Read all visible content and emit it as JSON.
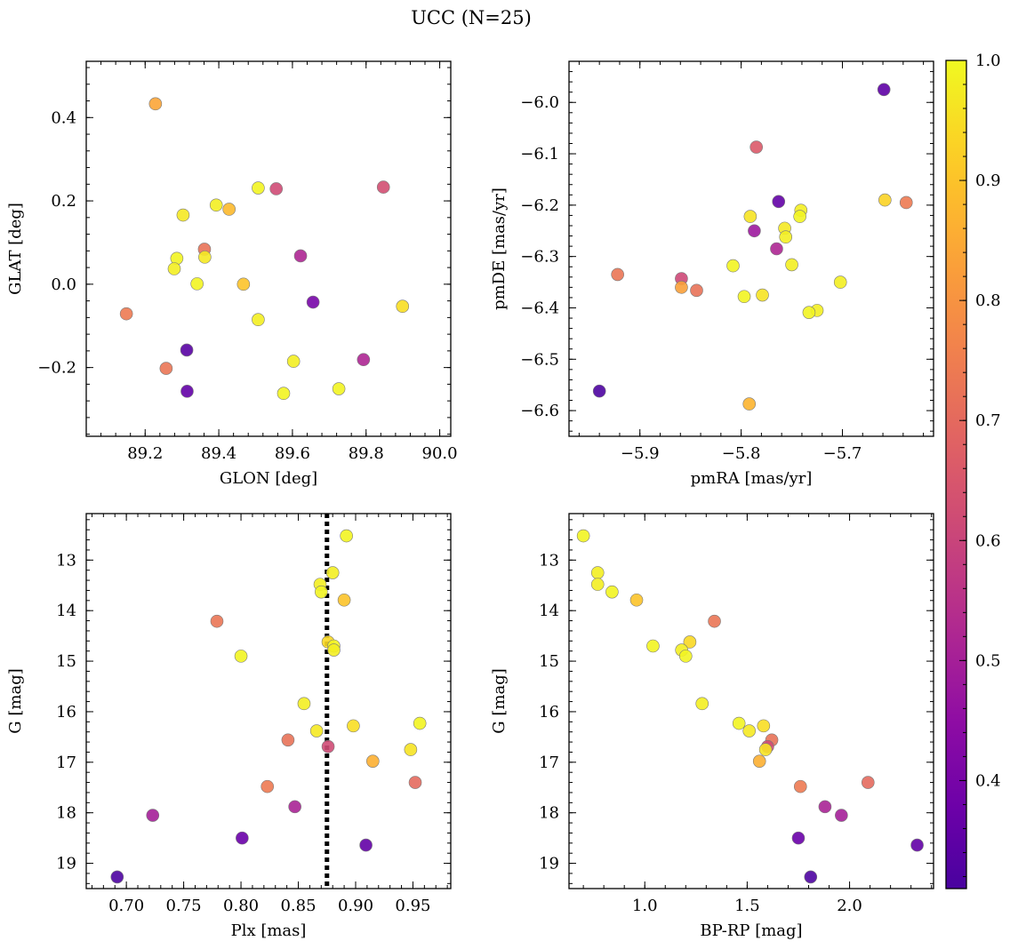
{
  "title": "UCC (N=25)",
  "colorbar": {
    "min": 0.31,
    "max": 1.0,
    "ticks": [
      "0.4",
      "0.5",
      "0.6",
      "0.7",
      "0.8",
      "0.9",
      "1.0"
    ],
    "tick_values": [
      0.4,
      0.5,
      0.6,
      0.7,
      0.8,
      0.9,
      1.0
    ],
    "colormap": "plasma"
  },
  "chart_data": [
    {
      "type": "scatter",
      "xlabel": "GLON [deg]",
      "ylabel": "GLAT [deg]",
      "xlim": [
        89.04,
        90.03
      ],
      "ylim": [
        -0.365,
        0.535
      ],
      "x_ticks": [
        "89.2",
        "89.4",
        "89.6",
        "89.8",
        "90.0"
      ],
      "x_tick_values": [
        89.2,
        89.4,
        89.6,
        89.8,
        90.0
      ],
      "y_ticks": [
        "−0.2",
        "0.0",
        "0.2",
        "0.4"
      ],
      "y_tick_values": [
        -0.2,
        0.0,
        0.2,
        0.4
      ],
      "points": [
        {
          "x": 89.228,
          "y": 0.433,
          "c": 0.84
        },
        {
          "x": 89.149,
          "y": -0.071,
          "c": 0.74
        },
        {
          "x": 89.257,
          "y": -0.202,
          "c": 0.73
        },
        {
          "x": 89.313,
          "y": -0.158,
          "c": 0.34
        },
        {
          "x": 89.314,
          "y": -0.257,
          "c": 0.36
        },
        {
          "x": 89.303,
          "y": 0.166,
          "c": 0.97
        },
        {
          "x": 89.393,
          "y": 0.19,
          "c": 0.98
        },
        {
          "x": 89.428,
          "y": 0.18,
          "c": 0.88
        },
        {
          "x": 89.286,
          "y": 0.062,
          "c": 0.99
        },
        {
          "x": 89.279,
          "y": 0.037,
          "c": 0.98
        },
        {
          "x": 89.361,
          "y": 0.084,
          "c": 0.72
        },
        {
          "x": 89.362,
          "y": 0.065,
          "c": 0.97
        },
        {
          "x": 89.341,
          "y": 0.001,
          "c": 0.99
        },
        {
          "x": 89.467,
          "y": 0.0,
          "c": 0.9
        },
        {
          "x": 89.507,
          "y": 0.231,
          "c": 0.99
        },
        {
          "x": 89.556,
          "y": 0.229,
          "c": 0.62
        },
        {
          "x": 89.507,
          "y": -0.085,
          "c": 0.98
        },
        {
          "x": 89.622,
          "y": 0.068,
          "c": 0.52
        },
        {
          "x": 89.656,
          "y": -0.043,
          "c": 0.4
        },
        {
          "x": 89.603,
          "y": -0.185,
          "c": 0.98
        },
        {
          "x": 89.576,
          "y": -0.262,
          "c": 0.99
        },
        {
          "x": 89.726,
          "y": -0.251,
          "c": 0.99
        },
        {
          "x": 89.793,
          "y": -0.181,
          "c": 0.52
        },
        {
          "x": 89.847,
          "y": 0.233,
          "c": 0.63
        },
        {
          "x": 89.899,
          "y": -0.053,
          "c": 0.95
        }
      ]
    },
    {
      "type": "scatter",
      "xlabel": "pmRA [mas/yr]",
      "ylabel": "pmDE [mas/yr]",
      "xlim": [
        -5.97,
        -5.61
      ],
      "ylim": [
        -6.65,
        -5.92
      ],
      "x_ticks": [
        "−5.9",
        "−5.8",
        "−5.7"
      ],
      "x_tick_values": [
        -5.9,
        -5.8,
        -5.7
      ],
      "y_ticks": [
        "−6.6",
        "−6.5",
        "−6.4",
        "−6.3",
        "−6.2",
        "−6.1",
        "−6.0"
      ],
      "y_tick_values": [
        -6.6,
        -6.5,
        -6.4,
        -6.3,
        -6.2,
        -6.1,
        -6.0
      ],
      "points": [
        {
          "x": -5.659,
          "y": -5.975,
          "c": 0.35
        },
        {
          "x": -5.785,
          "y": -6.087,
          "c": 0.66
        },
        {
          "x": -5.763,
          "y": -6.193,
          "c": 0.36
        },
        {
          "x": -5.658,
          "y": -6.19,
          "c": 0.93
        },
        {
          "x": -5.637,
          "y": -6.195,
          "c": 0.74
        },
        {
          "x": -5.741,
          "y": -6.21,
          "c": 0.98
        },
        {
          "x": -5.742,
          "y": -6.222,
          "c": 0.99
        },
        {
          "x": -5.791,
          "y": -6.222,
          "c": 0.96
        },
        {
          "x": -5.757,
          "y": -6.245,
          "c": 0.97
        },
        {
          "x": -5.787,
          "y": -6.25,
          "c": 0.48
        },
        {
          "x": -5.756,
          "y": -6.262,
          "c": 0.98
        },
        {
          "x": -5.765,
          "y": -6.285,
          "c": 0.52
        },
        {
          "x": -5.75,
          "y": -6.316,
          "c": 0.98
        },
        {
          "x": -5.808,
          "y": -6.318,
          "c": 0.99
        },
        {
          "x": -5.922,
          "y": -6.335,
          "c": 0.73
        },
        {
          "x": -5.859,
          "y": -6.343,
          "c": 0.61
        },
        {
          "x": -5.702,
          "y": -6.35,
          "c": 0.98
        },
        {
          "x": -5.859,
          "y": -6.36,
          "c": 0.83
        },
        {
          "x": -5.844,
          "y": -6.366,
          "c": 0.72
        },
        {
          "x": -5.797,
          "y": -6.378,
          "c": 0.99
        },
        {
          "x": -5.779,
          "y": -6.375,
          "c": 0.96
        },
        {
          "x": -5.725,
          "y": -6.405,
          "c": 0.98
        },
        {
          "x": -5.733,
          "y": -6.409,
          "c": 0.99
        },
        {
          "x": -5.792,
          "y": -6.587,
          "c": 0.87
        },
        {
          "x": -5.94,
          "y": -6.562,
          "c": 0.32
        }
      ]
    },
    {
      "type": "scatter",
      "xlabel": "Plx [mas]",
      "ylabel": "G [mag]",
      "xlim": [
        0.665,
        0.983
      ],
      "ylim": [
        19.5,
        12.08
      ],
      "y_inverted": true,
      "x_ticks": [
        "0.70",
        "0.75",
        "0.80",
        "0.85",
        "0.90",
        "0.95"
      ],
      "x_tick_values": [
        0.7,
        0.75,
        0.8,
        0.85,
        0.9,
        0.95
      ],
      "y_ticks": [
        "13",
        "14",
        "15",
        "16",
        "17",
        "18",
        "19"
      ],
      "y_tick_values": [
        13,
        14,
        15,
        16,
        17,
        18,
        19
      ],
      "vline": 0.875,
      "points": [
        {
          "x": 0.892,
          "y": 12.52,
          "c": 0.99
        },
        {
          "x": 0.88,
          "y": 13.25,
          "c": 0.98
        },
        {
          "x": 0.869,
          "y": 13.48,
          "c": 0.98
        },
        {
          "x": 0.87,
          "y": 13.63,
          "c": 0.99
        },
        {
          "x": 0.89,
          "y": 13.79,
          "c": 0.9
        },
        {
          "x": 0.779,
          "y": 14.21,
          "c": 0.73
        },
        {
          "x": 0.876,
          "y": 14.62,
          "c": 0.94
        },
        {
          "x": 0.881,
          "y": 14.7,
          "c": 0.99
        },
        {
          "x": 0.881,
          "y": 14.78,
          "c": 0.98
        },
        {
          "x": 0.8,
          "y": 14.9,
          "c": 0.99
        },
        {
          "x": 0.855,
          "y": 15.84,
          "c": 0.98
        },
        {
          "x": 0.956,
          "y": 16.23,
          "c": 0.99
        },
        {
          "x": 0.898,
          "y": 16.28,
          "c": 0.95
        },
        {
          "x": 0.866,
          "y": 16.38,
          "c": 0.97
        },
        {
          "x": 0.841,
          "y": 16.56,
          "c": 0.72
        },
        {
          "x": 0.876,
          "y": 16.69,
          "c": 0.62
        },
        {
          "x": 0.948,
          "y": 16.75,
          "c": 0.96
        },
        {
          "x": 0.915,
          "y": 16.98,
          "c": 0.86
        },
        {
          "x": 0.952,
          "y": 17.4,
          "c": 0.7
        },
        {
          "x": 0.823,
          "y": 17.48,
          "c": 0.74
        },
        {
          "x": 0.847,
          "y": 17.88,
          "c": 0.51
        },
        {
          "x": 0.723,
          "y": 18.05,
          "c": 0.5
        },
        {
          "x": 0.801,
          "y": 18.5,
          "c": 0.37
        },
        {
          "x": 0.909,
          "y": 18.64,
          "c": 0.36
        },
        {
          "x": 0.692,
          "y": 19.27,
          "c": 0.32
        }
      ]
    },
    {
      "type": "scatter",
      "xlabel": "BP-RP [mag]",
      "ylabel": "G [mag]",
      "xlim": [
        0.63,
        2.41
      ],
      "ylim": [
        19.5,
        12.08
      ],
      "y_inverted": true,
      "x_ticks": [
        "1.0",
        "1.5",
        "2.0"
      ],
      "x_tick_values": [
        1.0,
        1.5,
        2.0
      ],
      "y_ticks": [
        "13",
        "14",
        "15",
        "16",
        "17",
        "18",
        "19"
      ],
      "y_tick_values": [
        13,
        14,
        15,
        16,
        17,
        18,
        19
      ],
      "points": [
        {
          "x": 0.7,
          "y": 12.52,
          "c": 0.99
        },
        {
          "x": 0.77,
          "y": 13.25,
          "c": 0.98
        },
        {
          "x": 0.77,
          "y": 13.48,
          "c": 0.98
        },
        {
          "x": 0.84,
          "y": 13.63,
          "c": 0.99
        },
        {
          "x": 0.96,
          "y": 13.79,
          "c": 0.9
        },
        {
          "x": 1.34,
          "y": 14.21,
          "c": 0.73
        },
        {
          "x": 1.22,
          "y": 14.62,
          "c": 0.94
        },
        {
          "x": 1.04,
          "y": 14.7,
          "c": 0.99
        },
        {
          "x": 1.18,
          "y": 14.78,
          "c": 0.98
        },
        {
          "x": 1.2,
          "y": 14.9,
          "c": 0.99
        },
        {
          "x": 1.28,
          "y": 15.84,
          "c": 0.98
        },
        {
          "x": 1.46,
          "y": 16.23,
          "c": 0.99
        },
        {
          "x": 1.58,
          "y": 16.28,
          "c": 0.95
        },
        {
          "x": 1.51,
          "y": 16.38,
          "c": 0.97
        },
        {
          "x": 1.62,
          "y": 16.56,
          "c": 0.72
        },
        {
          "x": 1.6,
          "y": 16.69,
          "c": 0.62
        },
        {
          "x": 1.59,
          "y": 16.75,
          "c": 0.96
        },
        {
          "x": 1.56,
          "y": 16.98,
          "c": 0.86
        },
        {
          "x": 2.09,
          "y": 17.4,
          "c": 0.7
        },
        {
          "x": 1.76,
          "y": 17.48,
          "c": 0.74
        },
        {
          "x": 1.88,
          "y": 17.88,
          "c": 0.51
        },
        {
          "x": 1.96,
          "y": 18.05,
          "c": 0.5
        },
        {
          "x": 1.75,
          "y": 18.5,
          "c": 0.37
        },
        {
          "x": 2.33,
          "y": 18.64,
          "c": 0.36
        },
        {
          "x": 1.81,
          "y": 19.27,
          "c": 0.32
        }
      ]
    }
  ]
}
